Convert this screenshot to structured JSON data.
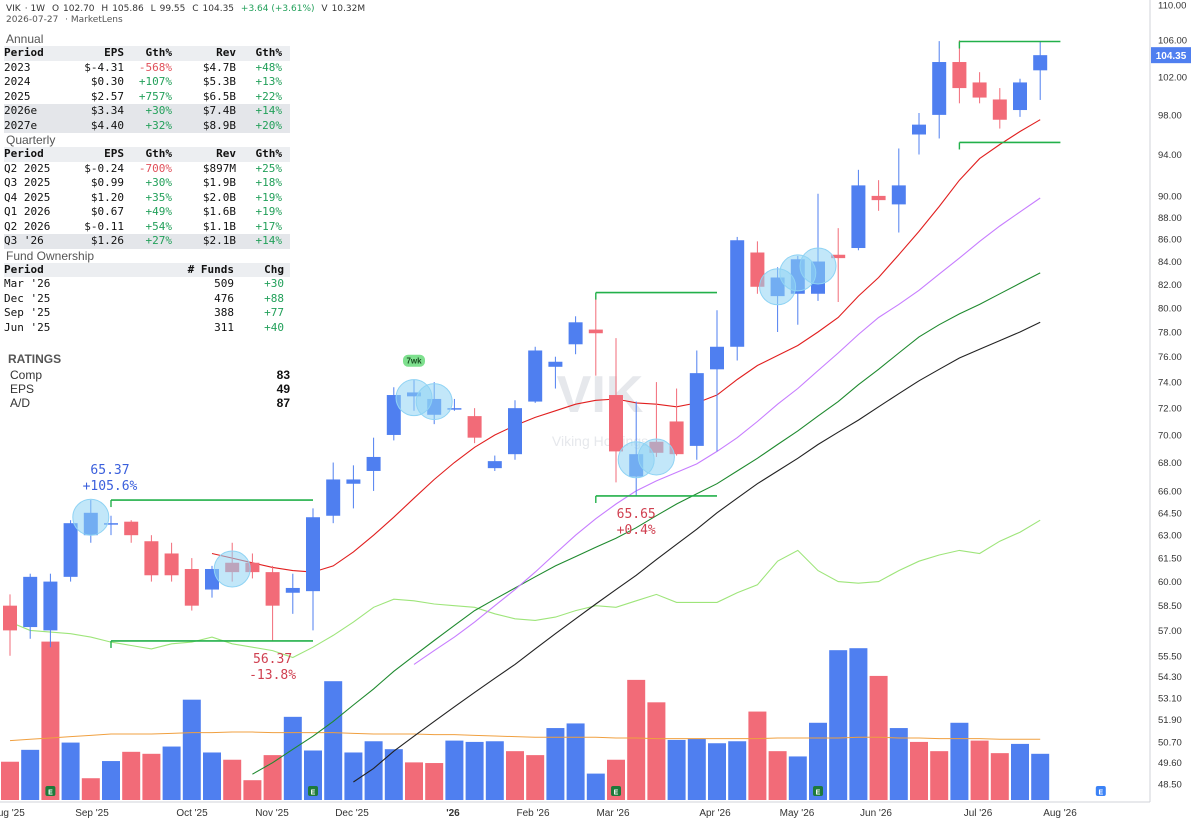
{
  "header": {
    "symbol": "VIK",
    "interval": "1W",
    "open": "102.70",
    "high": "105.86",
    "low": "99.55",
    "close": "104.35",
    "change": "+3.64 (+3.61%)",
    "volume": "10.32M",
    "date": "2026-07-27",
    "source": "MarketLens"
  },
  "watermark": {
    "symbol": "VIK",
    "company": "Viking Holdings"
  },
  "annual": {
    "title": "Annual",
    "columns": [
      "Period",
      "EPS",
      "Gth%",
      "Rev",
      "Gth%"
    ],
    "rows": [
      {
        "period": "2023",
        "eps": "$-4.31",
        "eps_g": "-568%",
        "rev": "$4.7B",
        "rev_g": "+48%"
      },
      {
        "period": "2024",
        "eps": "$0.30",
        "eps_g": "+107%",
        "rev": "$5.3B",
        "rev_g": "+13%"
      },
      {
        "period": "2025",
        "eps": "$2.57",
        "eps_g": "+757%",
        "rev": "$6.5B",
        "rev_g": "+22%"
      },
      {
        "period": "2026e",
        "eps": "$3.34",
        "eps_g": "+30%",
        "rev": "$7.4B",
        "rev_g": "+14%"
      },
      {
        "period": "2027e",
        "eps": "$4.40",
        "eps_g": "+32%",
        "rev": "$8.9B",
        "rev_g": "+20%"
      }
    ]
  },
  "quarterly": {
    "title": "Quarterly",
    "columns": [
      "Period",
      "EPS",
      "Gth%",
      "Rev",
      "Gth%"
    ],
    "rows": [
      {
        "period": "Q2 2025",
        "eps": "$-0.24",
        "eps_g": "-700%",
        "rev": "$897M",
        "rev_g": "+25%"
      },
      {
        "period": "Q3 2025",
        "eps": "$0.99",
        "eps_g": "+30%",
        "rev": "$1.9B",
        "rev_g": "+18%"
      },
      {
        "period": "Q4 2025",
        "eps": "$1.20",
        "eps_g": "+35%",
        "rev": "$2.0B",
        "rev_g": "+19%"
      },
      {
        "period": "Q1 2026",
        "eps": "$0.67",
        "eps_g": "+49%",
        "rev": "$1.6B",
        "rev_g": "+19%"
      },
      {
        "period": "Q2 2026",
        "eps": "$-0.11",
        "eps_g": "+54%",
        "rev": "$1.1B",
        "rev_g": "+17%"
      },
      {
        "period": "Q3 '26",
        "eps": "$1.26",
        "eps_g": "+27%",
        "rev": "$2.1B",
        "rev_g": "+14%"
      }
    ]
  },
  "funds": {
    "title": "Fund Ownership",
    "columns": [
      "Period",
      "# Funds",
      "Chg"
    ],
    "rows": [
      {
        "period": "Mar '26",
        "funds": "509",
        "chg": "+30"
      },
      {
        "period": "Dec '25",
        "funds": "476",
        "chg": "+88"
      },
      {
        "period": "Sep '25",
        "funds": "388",
        "chg": "+77"
      },
      {
        "period": "Jun '25",
        "funds": "311",
        "chg": "+40"
      }
    ]
  },
  "ratings": {
    "title": "RATINGS",
    "items": [
      {
        "label": "Comp",
        "value": "83"
      },
      {
        "label": "EPS",
        "value": "49"
      },
      {
        "label": "A/D",
        "value": "87"
      }
    ]
  },
  "colors": {
    "up": "#4f7ff0",
    "down": "#f26b78",
    "ma10": "#e11f1f",
    "ma21": "#c77dff",
    "ma50": "#1f8a2f",
    "ma200": "#222222",
    "rs_line": "#9ee57a",
    "vol_ma": "#f0a040",
    "range_line": "#22b04a",
    "tight_marker": "#8fd3f4",
    "price_tag": "#4f7ff0"
  },
  "chart_data": {
    "type": "candlestick",
    "y_scale": "log",
    "ylim": [
      48.5,
      110.0
    ],
    "x_ticks": [
      "Aug '25",
      "Sep '25",
      "Oct '25",
      "Nov '25",
      "Dec '25",
      "'26",
      "Feb '26",
      "Mar '26",
      "Apr '26",
      "May '26",
      "Jun '26",
      "Jul '26",
      "Aug '26"
    ],
    "y_ticks": [
      "110.00",
      "106.00",
      "102.00",
      "98.00",
      "94.00",
      "90.00",
      "88.00",
      "86.00",
      "84.00",
      "82.00",
      "80.00",
      "78.00",
      "76.00",
      "74.00",
      "72.00",
      "70.00",
      "68.00",
      "66.00",
      "64.50",
      "63.00",
      "61.50",
      "60.00",
      "58.50",
      "57.00",
      "55.50",
      "54.30",
      "53.10",
      "51.90",
      "50.70",
      "49.60",
      "48.50"
    ],
    "last_price": "104.35",
    "candles": [
      {
        "o": 58.5,
        "h": 59.2,
        "l": 55.5,
        "c": 57.0
      },
      {
        "o": 57.2,
        "h": 60.5,
        "l": 56.5,
        "c": 60.3
      },
      {
        "o": 57.0,
        "h": 60.5,
        "l": 56.0,
        "c": 60.0
      },
      {
        "o": 60.3,
        "h": 64.0,
        "l": 60.0,
        "c": 63.8
      },
      {
        "o": 63.0,
        "h": 65.37,
        "l": 62.5,
        "c": 64.5
      },
      {
        "o": 63.8,
        "h": 64.3,
        "l": 63.0,
        "c": 63.8
      },
      {
        "o": 63.9,
        "h": 64.0,
        "l": 62.5,
        "c": 63.0
      },
      {
        "o": 62.6,
        "h": 63.0,
        "l": 60.0,
        "c": 60.4
      },
      {
        "o": 61.8,
        "h": 62.5,
        "l": 60.0,
        "c": 60.4
      },
      {
        "o": 60.8,
        "h": 61.5,
        "l": 58.2,
        "c": 58.5
      },
      {
        "o": 59.5,
        "h": 61.0,
        "l": 59.0,
        "c": 60.8
      },
      {
        "o": 61.2,
        "h": 62.5,
        "l": 60.0,
        "c": 60.6
      },
      {
        "o": 61.2,
        "h": 61.8,
        "l": 60.2,
        "c": 60.6
      },
      {
        "o": 60.6,
        "h": 61.0,
        "l": 56.37,
        "c": 58.5
      },
      {
        "o": 59.3,
        "h": 60.5,
        "l": 58.0,
        "c": 59.6
      },
      {
        "o": 59.4,
        "h": 64.8,
        "l": 57.0,
        "c": 64.2
      },
      {
        "o": 64.3,
        "h": 68.0,
        "l": 63.8,
        "c": 66.8
      },
      {
        "o": 66.5,
        "h": 67.8,
        "l": 64.8,
        "c": 66.8
      },
      {
        "o": 67.4,
        "h": 69.8,
        "l": 66.0,
        "c": 68.4
      },
      {
        "o": 70.0,
        "h": 73.6,
        "l": 69.6,
        "c": 73.0
      },
      {
        "o": 72.9,
        "h": 74.2,
        "l": 71.8,
        "c": 73.2
      },
      {
        "o": 71.5,
        "h": 74.0,
        "l": 70.8,
        "c": 72.7
      },
      {
        "o": 71.9,
        "h": 72.7,
        "l": 71.8,
        "c": 72.0
      },
      {
        "o": 71.4,
        "h": 72.0,
        "l": 69.4,
        "c": 69.8
      },
      {
        "o": 67.6,
        "h": 68.5,
        "l": 67.4,
        "c": 68.1
      },
      {
        "o": 68.6,
        "h": 72.6,
        "l": 68.2,
        "c": 72.0
      },
      {
        "o": 72.5,
        "h": 76.8,
        "l": 72.4,
        "c": 76.5
      },
      {
        "o": 75.2,
        "h": 76.0,
        "l": 73.5,
        "c": 75.6
      },
      {
        "o": 77.0,
        "h": 79.3,
        "l": 76.2,
        "c": 78.8
      },
      {
        "o": 78.2,
        "h": 81.0,
        "l": 74.5,
        "c": 77.9
      },
      {
        "o": 73.0,
        "h": 77.5,
        "l": 66.6,
        "c": 68.8
      },
      {
        "o": 67.0,
        "h": 72.5,
        "l": 65.65,
        "c": 68.6
      },
      {
        "o": 69.5,
        "h": 74.0,
        "l": 68.4,
        "c": 68.7
      },
      {
        "o": 71.0,
        "h": 73.5,
        "l": 68.5,
        "c": 68.6
      },
      {
        "o": 69.2,
        "h": 76.5,
        "l": 68.2,
        "c": 74.7
      },
      {
        "o": 75.0,
        "h": 79.8,
        "l": 68.8,
        "c": 76.8
      },
      {
        "o": 76.8,
        "h": 86.2,
        "l": 75.7,
        "c": 85.9
      },
      {
        "o": 84.8,
        "h": 85.8,
        "l": 81.2,
        "c": 81.8
      },
      {
        "o": 81.0,
        "h": 83.5,
        "l": 78.0,
        "c": 82.6
      },
      {
        "o": 81.2,
        "h": 84.5,
        "l": 78.6,
        "c": 84.2
      },
      {
        "o": 81.2,
        "h": 90.2,
        "l": 80.6,
        "c": 84.0
      },
      {
        "o": 84.6,
        "h": 87.0,
        "l": 80.5,
        "c": 84.3
      },
      {
        "o": 85.2,
        "h": 92.5,
        "l": 85.0,
        "c": 91.0
      },
      {
        "o": 90.0,
        "h": 91.5,
        "l": 88.6,
        "c": 89.6
      },
      {
        "o": 89.2,
        "h": 94.6,
        "l": 86.6,
        "c": 91.0
      },
      {
        "o": 96.0,
        "h": 98.2,
        "l": 94.0,
        "c": 97.0
      },
      {
        "o": 98.0,
        "h": 105.9,
        "l": 95.6,
        "c": 103.6
      },
      {
        "o": 103.6,
        "h": 106.0,
        "l": 99.2,
        "c": 100.8
      },
      {
        "o": 101.4,
        "h": 102.5,
        "l": 99.2,
        "c": 99.8
      },
      {
        "o": 99.6,
        "h": 100.8,
        "l": 96.6,
        "c": 97.5
      },
      {
        "o": 98.5,
        "h": 101.8,
        "l": 97.8,
        "c": 101.4
      },
      {
        "o": 102.7,
        "h": 105.86,
        "l": 99.55,
        "c": 104.35
      }
    ],
    "ma10": [
      null,
      null,
      null,
      null,
      null,
      null,
      null,
      null,
      null,
      null,
      61.8,
      61.5,
      61.2,
      60.9,
      60.7,
      60.6,
      61.0,
      61.9,
      63.0,
      64.2,
      65.5,
      66.8,
      68.0,
      69.1,
      70.0,
      70.7,
      71.3,
      71.8,
      72.3,
      72.6,
      72.7,
      72.4,
      72.3,
      72.1,
      72.4,
      73.0,
      74.2,
      75.3,
      76.1,
      76.9,
      78.0,
      79.2,
      81.0,
      82.6,
      84.6,
      86.7,
      89.0,
      91.5,
      93.6,
      95.0,
      96.3,
      97.5
    ],
    "ma21": [
      null,
      null,
      null,
      null,
      null,
      null,
      null,
      null,
      null,
      null,
      null,
      null,
      null,
      null,
      null,
      null,
      null,
      null,
      null,
      null,
      55.0,
      55.8,
      56.6,
      57.5,
      58.5,
      59.5,
      60.6,
      61.8,
      63.0,
      64.1,
      65.1,
      66.0,
      66.7,
      67.3,
      67.9,
      68.8,
      69.8,
      71.0,
      72.3,
      73.5,
      74.9,
      76.3,
      77.8,
      79.2,
      80.3,
      81.5,
      82.9,
      84.3,
      85.8,
      87.2,
      88.5,
      89.8
    ],
    "ma50": [
      null,
      null,
      null,
      null,
      null,
      null,
      null,
      null,
      null,
      null,
      null,
      null,
      49.0,
      49.6,
      50.3,
      51.0,
      51.8,
      52.7,
      53.6,
      54.6,
      55.5,
      56.4,
      57.3,
      58.2,
      58.9,
      59.6,
      60.3,
      61.0,
      61.6,
      62.2,
      62.8,
      63.5,
      64.3,
      65.1,
      65.8,
      66.5,
      67.4,
      68.3,
      69.3,
      70.3,
      71.4,
      72.5,
      73.8,
      75.0,
      76.3,
      77.6,
      78.6,
      79.5,
      80.3,
      81.2,
      82.1,
      83.0
    ],
    "ma200": [
      null,
      null,
      null,
      null,
      null,
      null,
      null,
      null,
      null,
      null,
      null,
      null,
      null,
      null,
      null,
      null,
      null,
      48.6,
      49.3,
      50.2,
      51.0,
      51.8,
      52.6,
      53.4,
      54.2,
      55.0,
      55.9,
      56.8,
      57.7,
      58.6,
      59.5,
      60.4,
      61.4,
      62.4,
      63.4,
      64.5,
      65.5,
      66.5,
      67.4,
      68.3,
      69.3,
      70.2,
      71.1,
      72.1,
      73.1,
      74.1,
      75.0,
      75.9,
      76.6,
      77.3,
      78.0,
      78.8
    ],
    "rs_line": [
      57.5,
      57.0,
      56.9,
      56.8,
      56.6,
      56.3,
      56.1,
      55.9,
      56.2,
      56.3,
      56.6,
      56.2,
      56.0,
      55.8,
      55.4,
      56.0,
      56.7,
      57.5,
      58.4,
      58.9,
      58.8,
      58.6,
      58.5,
      58.4,
      58.0,
      57.7,
      57.6,
      57.8,
      58.2,
      58.5,
      58.4,
      58.8,
      59.2,
      58.7,
      58.7,
      58.7,
      59.3,
      59.8,
      61.3,
      62.0,
      60.7,
      60.0,
      59.9,
      60.0,
      60.7,
      61.3,
      61.7,
      62.0,
      61.8,
      62.6,
      63.2,
      64.0
    ],
    "volume": [
      0.58,
      0.76,
      2.4,
      0.87,
      0.33,
      0.59,
      0.73,
      0.7,
      0.81,
      1.52,
      0.72,
      0.61,
      0.3,
      0.68,
      1.26,
      0.75,
      1.8,
      0.72,
      0.89,
      0.77,
      0.57,
      0.56,
      0.9,
      0.88,
      0.89,
      0.74,
      0.68,
      1.09,
      1.16,
      0.4,
      0.61,
      1.82,
      1.48,
      0.91,
      0.93,
      0.86,
      0.89,
      1.34,
      0.74,
      0.66,
      1.17,
      2.27,
      2.3,
      1.88,
      1.09,
      0.88,
      0.74,
      1.17,
      0.9,
      0.71,
      0.85,
      0.7
    ],
    "volume_colors": [
      "d",
      "u",
      "d",
      "u",
      "d",
      "u",
      "d",
      "d",
      "u",
      "u",
      "u",
      "d",
      "d",
      "d",
      "u",
      "u",
      "u",
      "u",
      "u",
      "u",
      "d",
      "d",
      "u",
      "u",
      "u",
      "d",
      "d",
      "u",
      "u",
      "u",
      "d",
      "d",
      "d",
      "u",
      "u",
      "u",
      "u",
      "d",
      "d",
      "u",
      "u",
      "u",
      "u",
      "d",
      "u",
      "d",
      "d",
      "u",
      "d",
      "d",
      "u",
      "u"
    ],
    "vol_ma": [
      0.9,
      0.92,
      0.94,
      0.96,
      0.98,
      1.0,
      1.0,
      1.0,
      1.01,
      1.02,
      1.02,
      1.03,
      1.03,
      1.02,
      1.02,
      1.02,
      1.02,
      1.01,
      1.0,
      1.0,
      1.0,
      0.99,
      0.99,
      0.98,
      0.97,
      0.96,
      0.95,
      0.95,
      0.95,
      0.95,
      0.94,
      0.94,
      0.93,
      0.93,
      0.93,
      0.93,
      0.93,
      0.93,
      0.94,
      0.94,
      0.94,
      0.94,
      0.95,
      0.95,
      0.94,
      0.94,
      0.93,
      0.93,
      0.93,
      0.92,
      0.92,
      0.92
    ],
    "earnings_markers": [
      2,
      15,
      30,
      40,
      54
    ],
    "tight_markers": [
      {
        "bar": 4,
        "price": 64.2
      },
      {
        "bar": 11,
        "price": 60.8
      },
      {
        "bar": 20,
        "price": 72.8
      },
      {
        "bar": 21,
        "price": 72.5
      },
      {
        "bar": 31,
        "price": 68.2
      },
      {
        "bar": 32,
        "price": 68.4
      },
      {
        "bar": 38,
        "price": 81.8
      },
      {
        "bar": 39,
        "price": 83.0
      },
      {
        "bar": 40,
        "price": 83.6
      }
    ],
    "tight_label": {
      "bar": 20,
      "text": "7wk"
    },
    "range_lines": [
      {
        "from": 5,
        "to": 15,
        "price": 65.37
      },
      {
        "from": 5,
        "to": 15,
        "price": 56.37
      },
      {
        "from": 29,
        "to": 35,
        "price": 81.3
      },
      {
        "from": 29,
        "to": 35,
        "price": 65.65
      },
      {
        "from": 47,
        "to": 52,
        "price": 105.86
      },
      {
        "from": 47,
        "to": 52,
        "price": 95.2
      }
    ],
    "annotations": [
      {
        "bar": 5,
        "price": 65.37,
        "text": "65.37",
        "sub": "+105.6%",
        "color": "#3a5fdc",
        "where": "above"
      },
      {
        "bar": 13,
        "price": 56.37,
        "text": "56.37",
        "sub": "-13.8%",
        "color": "#d04050",
        "where": "below"
      },
      {
        "bar": 31,
        "price": 65.65,
        "text": "65.65",
        "sub": "+0.4%",
        "color": "#d04050",
        "where": "below"
      }
    ]
  }
}
